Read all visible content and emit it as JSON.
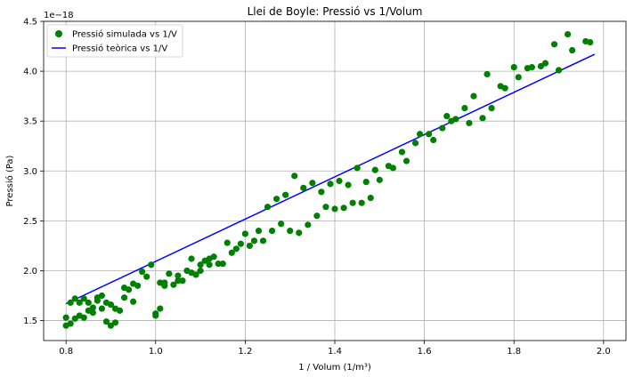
{
  "chart_data": {
    "type": "scatter",
    "title": "Llei de Boyle: Pressió vs 1/Volum",
    "xlabel": "1 / Volum (1/m³)",
    "ylabel": "Pressió (Pa)",
    "y_scale_label": "1e−18",
    "xlim": [
      0.75,
      2.05
    ],
    "ylim": [
      1.3,
      4.5
    ],
    "x_ticks": [
      "0.8",
      "1.0",
      "1.2",
      "1.4",
      "1.6",
      "1.8",
      "2.0"
    ],
    "y_ticks": [
      "1.5",
      "2.0",
      "2.5",
      "3.0",
      "3.5",
      "4.0",
      "4.5"
    ],
    "grid": true,
    "legend_position": "top-left",
    "series": [
      {
        "name": "Pressió simulada vs 1/V",
        "kind": "scatter",
        "color": "#008000",
        "points": [
          [
            0.8,
            1.53
          ],
          [
            0.8,
            1.45
          ],
          [
            0.81,
            1.47
          ],
          [
            0.81,
            1.68
          ],
          [
            0.82,
            1.72
          ],
          [
            0.82,
            1.52
          ],
          [
            0.83,
            1.68
          ],
          [
            0.83,
            1.55
          ],
          [
            0.84,
            1.72
          ],
          [
            0.84,
            1.53
          ],
          [
            0.85,
            1.6
          ],
          [
            0.85,
            1.68
          ],
          [
            0.86,
            1.58
          ],
          [
            0.86,
            1.63
          ],
          [
            0.87,
            1.7
          ],
          [
            0.87,
            1.73
          ],
          [
            0.88,
            1.75
          ],
          [
            0.88,
            1.62
          ],
          [
            0.89,
            1.68
          ],
          [
            0.89,
            1.49
          ],
          [
            0.9,
            1.45
          ],
          [
            0.9,
            1.66
          ],
          [
            0.91,
            1.48
          ],
          [
            0.91,
            1.62
          ],
          [
            0.92,
            1.6
          ],
          [
            0.93,
            1.73
          ],
          [
            0.93,
            1.83
          ],
          [
            0.94,
            1.81
          ],
          [
            0.95,
            1.69
          ],
          [
            0.95,
            1.87
          ],
          [
            0.96,
            1.85
          ],
          [
            0.97,
            1.99
          ],
          [
            0.98,
            1.94
          ],
          [
            0.99,
            2.06
          ],
          [
            1.0,
            1.57
          ],
          [
            1.0,
            1.55
          ],
          [
            1.01,
            1.62
          ],
          [
            1.01,
            1.88
          ],
          [
            1.02,
            1.88
          ],
          [
            1.02,
            1.85
          ],
          [
            1.03,
            1.97
          ],
          [
            1.04,
            1.86
          ],
          [
            1.05,
            1.9
          ],
          [
            1.05,
            1.95
          ],
          [
            1.06,
            1.9
          ],
          [
            1.07,
            2.0
          ],
          [
            1.08,
            1.98
          ],
          [
            1.08,
            2.12
          ],
          [
            1.09,
            1.96
          ],
          [
            1.1,
            2.06
          ],
          [
            1.1,
            2.0
          ],
          [
            1.11,
            2.1
          ],
          [
            1.12,
            2.12
          ],
          [
            1.12,
            2.06
          ],
          [
            1.13,
            2.14
          ],
          [
            1.14,
            2.07
          ],
          [
            1.15,
            2.07
          ],
          [
            1.16,
            2.28
          ],
          [
            1.17,
            2.18
          ],
          [
            1.18,
            2.22
          ],
          [
            1.19,
            2.27
          ],
          [
            1.2,
            2.37
          ],
          [
            1.21,
            2.25
          ],
          [
            1.22,
            2.3
          ],
          [
            1.23,
            2.4
          ],
          [
            1.24,
            2.3
          ],
          [
            1.25,
            2.64
          ],
          [
            1.26,
            2.4
          ],
          [
            1.27,
            2.72
          ],
          [
            1.28,
            2.47
          ],
          [
            1.29,
            2.76
          ],
          [
            1.3,
            2.4
          ],
          [
            1.31,
            2.95
          ],
          [
            1.32,
            2.38
          ],
          [
            1.33,
            2.83
          ],
          [
            1.34,
            2.46
          ],
          [
            1.35,
            2.88
          ],
          [
            1.36,
            2.55
          ],
          [
            1.37,
            2.79
          ],
          [
            1.38,
            2.64
          ],
          [
            1.39,
            2.87
          ],
          [
            1.4,
            2.62
          ],
          [
            1.41,
            2.9
          ],
          [
            1.42,
            2.63
          ],
          [
            1.43,
            2.86
          ],
          [
            1.44,
            2.68
          ],
          [
            1.45,
            3.03
          ],
          [
            1.46,
            2.68
          ],
          [
            1.47,
            2.89
          ],
          [
            1.48,
            2.73
          ],
          [
            1.49,
            3.01
          ],
          [
            1.5,
            2.91
          ],
          [
            1.52,
            3.05
          ],
          [
            1.53,
            3.03
          ],
          [
            1.55,
            3.19
          ],
          [
            1.56,
            3.1
          ],
          [
            1.58,
            3.28
          ],
          [
            1.59,
            3.37
          ],
          [
            1.61,
            3.37
          ],
          [
            1.62,
            3.31
          ],
          [
            1.64,
            3.43
          ],
          [
            1.65,
            3.55
          ],
          [
            1.66,
            3.5
          ],
          [
            1.67,
            3.52
          ],
          [
            1.69,
            3.63
          ],
          [
            1.7,
            3.48
          ],
          [
            1.71,
            3.75
          ],
          [
            1.73,
            3.53
          ],
          [
            1.74,
            3.97
          ],
          [
            1.75,
            3.63
          ],
          [
            1.77,
            3.85
          ],
          [
            1.78,
            3.83
          ],
          [
            1.8,
            4.04
          ],
          [
            1.81,
            3.94
          ],
          [
            1.83,
            4.03
          ],
          [
            1.84,
            4.04
          ],
          [
            1.86,
            4.05
          ],
          [
            1.87,
            4.08
          ],
          [
            1.89,
            4.27
          ],
          [
            1.9,
            4.01
          ],
          [
            1.92,
            4.37
          ],
          [
            1.93,
            4.21
          ],
          [
            1.96,
            4.3
          ],
          [
            1.97,
            4.29
          ]
        ]
      },
      {
        "name": "Pressió teòrica vs 1/V",
        "kind": "line",
        "color": "#0000ff",
        "points": [
          [
            0.8,
            1.67
          ],
          [
            1.98,
            4.17
          ]
        ]
      }
    ]
  }
}
